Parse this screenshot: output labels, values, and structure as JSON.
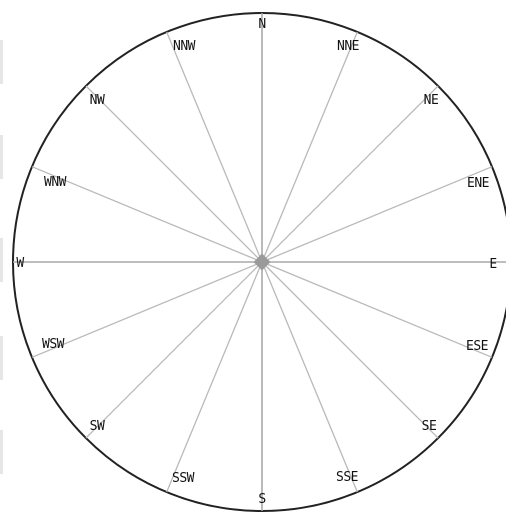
{
  "rose": {
    "directions": [
      "N",
      "NNE",
      "NE",
      "ENE",
      "E",
      "ESE",
      "SE",
      "SSE",
      "S",
      "SSW",
      "SW",
      "WSW",
      "W",
      "WNW",
      "NW",
      "NNW"
    ]
  },
  "colors": {
    "background": "#ffffff",
    "circle": "#222222",
    "rays": "#b9b9b9",
    "center": "#9a9a9a",
    "text": "#111111",
    "edge_marks": "#e6e6e6"
  }
}
